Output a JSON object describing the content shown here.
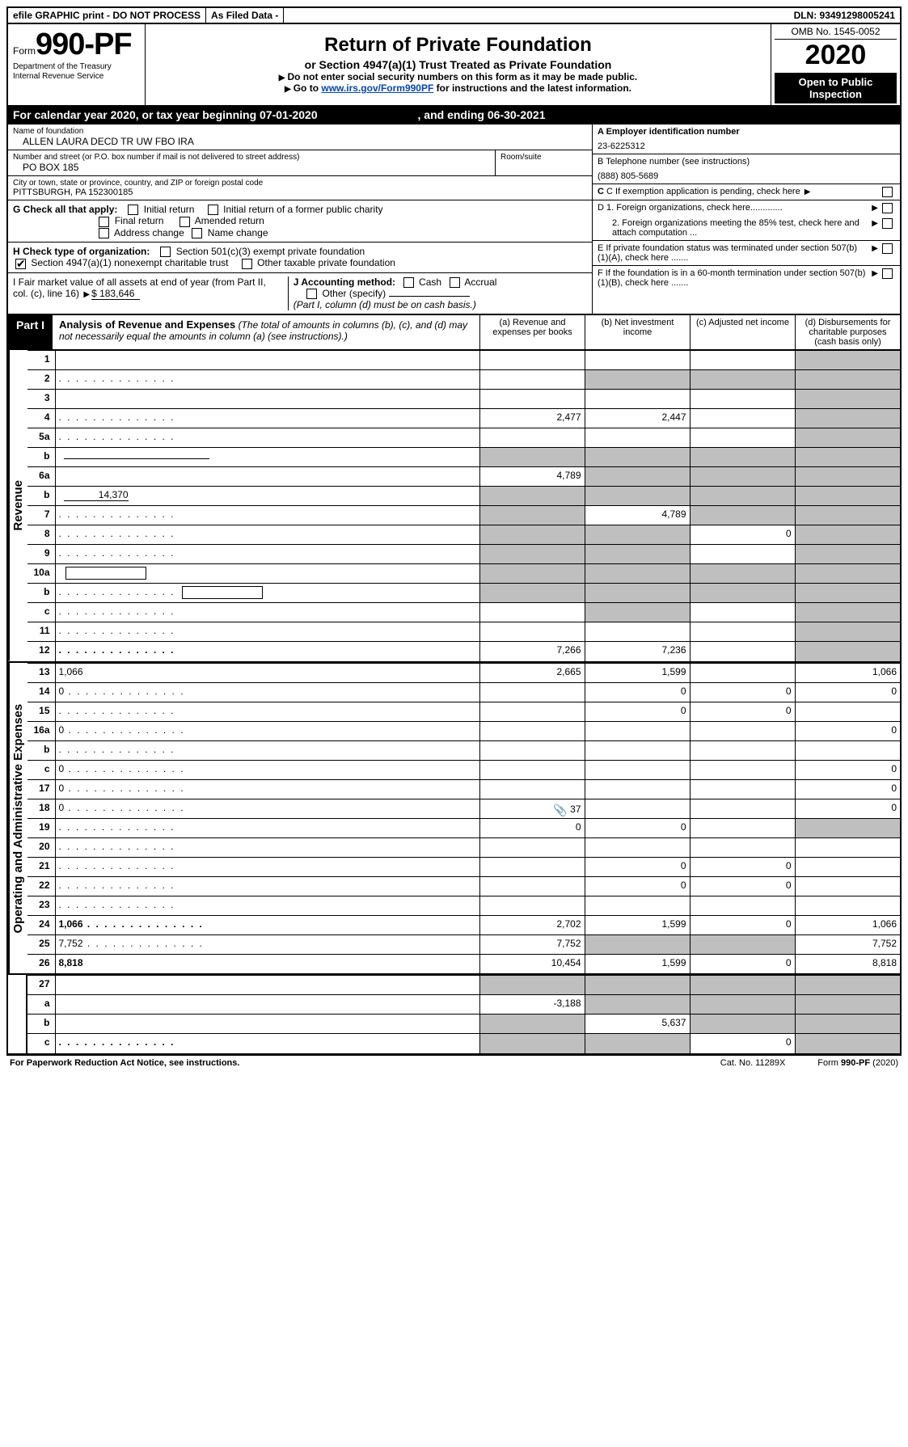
{
  "header": {
    "efile": "efile GRAPHIC print - DO NOT PROCESS",
    "asfiled": "As Filed Data -",
    "dln": "DLN: 93491298005241"
  },
  "form": {
    "prefix": "Form",
    "number": "990-PF",
    "dept1": "Department of the Treasury",
    "dept2": "Internal Revenue Service",
    "title": "Return of Private Foundation",
    "subtitle": "or Section 4947(a)(1) Trust Treated as Private Foundation",
    "instr1": "Do not enter social security numbers on this form as it may be made public.",
    "instr2_pre": "Go to ",
    "instr2_link": "www.irs.gov/Form990PF",
    "instr2_post": " for instructions and the latest information.",
    "omb": "OMB No. 1545-0052",
    "year": "2020",
    "open": "Open to Public Inspection"
  },
  "cal": {
    "text_pre": "For calendar year 2020, or tax year beginning ",
    "begin": "07-01-2020",
    "text_mid": " , and ending ",
    "end": "06-30-2021"
  },
  "entity": {
    "name_lbl": "Name of foundation",
    "name": "ALLEN LAURA DECD TR UW FBO IRA",
    "addr_lbl": "Number and street (or P.O. box number if mail is not delivered to street address)",
    "room_lbl": "Room/suite",
    "addr": "PO BOX 185",
    "city_lbl": "City or town, state or province, country, and ZIP or foreign postal code",
    "city": "PITTSBURGH, PA  152300185",
    "a_lbl": "A Employer identification number",
    "a_val": "23-6225312",
    "b_lbl": "B Telephone number (see instructions)",
    "b_val": "(888) 805-5689",
    "c_lbl": "C If exemption application is pending, check here",
    "d1": "D 1. Foreign organizations, check here.............",
    "d2": "2. Foreign organizations meeting the 85% test, check here and attach computation ...",
    "e": "E  If private foundation status was terminated under section 507(b)(1)(A), check here .......",
    "f": "F  If the foundation is in a 60-month termination under section 507(b)(1)(B), check here ......."
  },
  "g": {
    "lbl": "G Check all that apply:",
    "initial": "Initial return",
    "initial_former": "Initial return of a former public charity",
    "final": "Final return",
    "amended": "Amended return",
    "addr_change": "Address change",
    "name_change": "Name change"
  },
  "h": {
    "lbl": "H Check type of organization:",
    "opt1": "Section 501(c)(3) exempt private foundation",
    "opt2": "Section 4947(a)(1) nonexempt charitable trust",
    "opt3": "Other taxable private foundation"
  },
  "i": {
    "lbl_pre": "I Fair market value of all assets at end of year (from Part II, col. (c), line 16)",
    "val": "$  183,646",
    "j_lbl": "J Accounting method:",
    "cash": "Cash",
    "accrual": "Accrual",
    "other": "Other (specify)",
    "note": "(Part I, column (d) must be on cash basis.)"
  },
  "part1": {
    "tag": "Part I",
    "title": "Analysis of Revenue and Expenses",
    "note": "(The total of amounts in columns (b), (c), and (d) may not necessarily equal the amounts in column (a) (see instructions).)",
    "col_a": "(a) Revenue and expenses per books",
    "col_b": "(b) Net investment income",
    "col_c": "(c) Adjusted net income",
    "col_d": "(d) Disbursements for charitable purposes (cash basis only)"
  },
  "sections": {
    "revenue": "Revenue",
    "opadmin": "Operating and Administrative Expenses"
  },
  "rows": [
    {
      "n": "1",
      "d": "",
      "a": "",
      "b": "",
      "c": "",
      "cg": false,
      "dg": true
    },
    {
      "n": "2",
      "d": "",
      "dots": true,
      "a": "",
      "b": "",
      "c": "",
      "bg": true,
      "cg": true,
      "dg": true
    },
    {
      "n": "3",
      "d": "",
      "a": "",
      "b": "",
      "c": "",
      "dg": true
    },
    {
      "n": "4",
      "d": "",
      "dots": true,
      "a": "2,477",
      "b": "2,447",
      "c": "",
      "dg": true
    },
    {
      "n": "5a",
      "d": "",
      "dots": true,
      "a": "",
      "b": "",
      "c": "",
      "dg": true
    },
    {
      "n": "b",
      "d": "",
      "under": true,
      "a": "",
      "b": "",
      "c": "",
      "ag": true,
      "bg": true,
      "cg": true,
      "dg": true
    },
    {
      "n": "6a",
      "d": "",
      "a": "4,789",
      "b": "",
      "c": "",
      "bg": true,
      "cg": true,
      "dg": true
    },
    {
      "n": "b",
      "d": "",
      "under_val": "14,370",
      "a": "",
      "b": "",
      "c": "",
      "ag": true,
      "bg": true,
      "cg": true,
      "dg": true
    },
    {
      "n": "7",
      "d": "",
      "dots": true,
      "a": "",
      "b": "4,789",
      "c": "",
      "ag": true,
      "cg": true,
      "dg": true
    },
    {
      "n": "8",
      "d": "",
      "dots": true,
      "a": "",
      "b": "",
      "c": "0",
      "ag": true,
      "bg": true,
      "dg": true
    },
    {
      "n": "9",
      "d": "",
      "dots": true,
      "a": "",
      "b": "",
      "c": "",
      "ag": true,
      "bg": true,
      "dg": true
    },
    {
      "n": "10a",
      "d": "",
      "box": true,
      "a": "",
      "b": "",
      "c": "",
      "ag": true,
      "bg": true,
      "cg": true,
      "dg": true
    },
    {
      "n": "b",
      "d": "",
      "dots": true,
      "box": true,
      "a": "",
      "b": "",
      "c": "",
      "ag": true,
      "bg": true,
      "cg": true,
      "dg": true
    },
    {
      "n": "c",
      "d": "",
      "dots": true,
      "a": "",
      "b": "",
      "c": "",
      "bg": true,
      "dg": true
    },
    {
      "n": "11",
      "d": "",
      "dots": true,
      "a": "",
      "b": "",
      "c": "",
      "dg": true
    },
    {
      "n": "12",
      "d": "",
      "dots": true,
      "bold": true,
      "a": "7,266",
      "b": "7,236",
      "c": "",
      "dg": true
    }
  ],
  "rows_exp": [
    {
      "n": "13",
      "d": "1,066",
      "a": "2,665",
      "b": "1,599",
      "c": ""
    },
    {
      "n": "14",
      "d": "0",
      "dots": true,
      "a": "",
      "b": "0",
      "c": "0"
    },
    {
      "n": "15",
      "d": "",
      "dots": true,
      "a": "",
      "b": "0",
      "c": "0"
    },
    {
      "n": "16a",
      "d": "0",
      "dots": true,
      "a": "",
      "b": "",
      "c": ""
    },
    {
      "n": "b",
      "d": "",
      "dots": true,
      "a": "",
      "b": "",
      "c": ""
    },
    {
      "n": "c",
      "d": "0",
      "dots": true,
      "a": "",
      "b": "",
      "c": ""
    },
    {
      "n": "17",
      "d": "0",
      "dots": true,
      "a": "",
      "b": "",
      "c": ""
    },
    {
      "n": "18",
      "d": "0",
      "dots": true,
      "a": "37",
      "attach": true,
      "b": "",
      "c": ""
    },
    {
      "n": "19",
      "d": "",
      "dots": true,
      "a": "0",
      "b": "0",
      "c": "",
      "dg": true
    },
    {
      "n": "20",
      "d": "",
      "dots": true,
      "a": "",
      "b": "",
      "c": ""
    },
    {
      "n": "21",
      "d": "",
      "dots": true,
      "a": "",
      "b": "0",
      "c": "0"
    },
    {
      "n": "22",
      "d": "",
      "dots": true,
      "a": "",
      "b": "0",
      "c": "0"
    },
    {
      "n": "23",
      "d": "",
      "dots": true,
      "a": "",
      "b": "",
      "c": ""
    },
    {
      "n": "24",
      "d": "1,066",
      "dots": true,
      "bold": true,
      "a": "2,702",
      "b": "1,599",
      "c": "0"
    },
    {
      "n": "25",
      "d": "7,752",
      "dots": true,
      "a": "7,752",
      "b": "",
      "c": "",
      "bg": true,
      "cg": true
    },
    {
      "n": "26",
      "d": "8,818",
      "bold": true,
      "a": "10,454",
      "b": "1,599",
      "c": "0"
    }
  ],
  "rows_bot": [
    {
      "n": "27",
      "d": "",
      "a": "",
      "b": "",
      "c": "",
      "ag": true,
      "bg": true,
      "cg": true,
      "dg": true
    },
    {
      "n": "a",
      "d": "",
      "bold": true,
      "a": "-3,188",
      "b": "",
      "c": "",
      "bg": true,
      "cg": true,
      "dg": true
    },
    {
      "n": "b",
      "d": "",
      "bold": true,
      "a": "",
      "b": "5,637",
      "c": "",
      "ag": true,
      "cg": true,
      "dg": true
    },
    {
      "n": "c",
      "d": "",
      "dots": true,
      "bold": true,
      "a": "",
      "b": "",
      "c": "0",
      "ag": true,
      "bg": true,
      "dg": true
    }
  ],
  "footer": {
    "left": "For Paperwork Reduction Act Notice, see instructions.",
    "mid": "Cat. No. 11289X",
    "right": "Form 990-PF (2020)"
  },
  "cols": {
    "side_w": 24,
    "num_w": 34,
    "desc_w": 0,
    "amt_w": 130
  },
  "colors": {
    "border": "#000000",
    "gray": "#bfbfbf",
    "link": "#0645ad"
  }
}
